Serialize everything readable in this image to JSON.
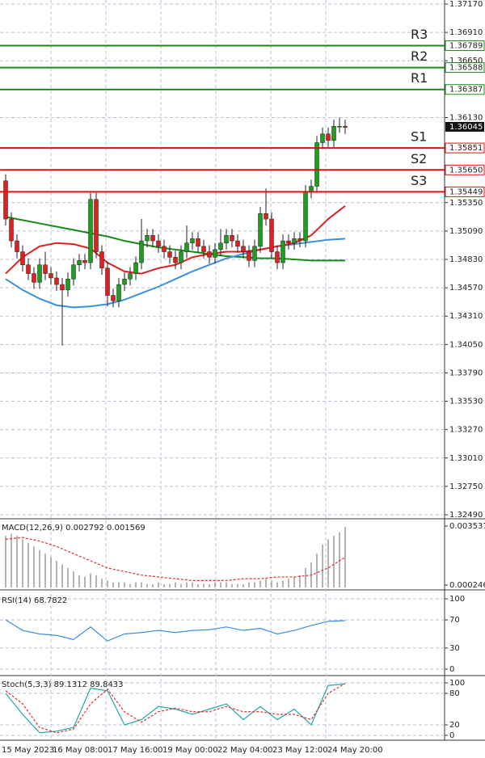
{
  "chart_data": [
    {
      "type": "candlestick",
      "up_color": "#1f9d1f",
      "down_color": "#e02020",
      "open": [
        1.3555,
        1.352,
        1.35,
        1.349,
        1.3478,
        1.347,
        1.3462,
        1.3478,
        1.347,
        1.3466,
        1.346,
        1.3455,
        1.3465,
        1.3478,
        1.3482,
        1.348,
        1.3538,
        1.349,
        1.3475,
        1.345,
        1.3445,
        1.346,
        1.3465,
        1.347,
        1.348,
        1.35,
        1.3505,
        1.35,
        1.3495,
        1.349,
        1.3485,
        1.348,
        1.349,
        1.3498,
        1.3502,
        1.3495,
        1.349,
        1.3485,
        1.3492,
        1.3498,
        1.3505,
        1.35,
        1.3495,
        1.349,
        1.3482,
        1.3495,
        1.3525,
        1.352,
        1.349,
        1.348,
        1.35,
        1.3498,
        1.3502,
        1.35,
        1.3545,
        1.355,
        1.359,
        1.3598,
        1.3592,
        1.3605,
        1.3605
      ],
      "high": [
        1.3561,
        1.3526,
        1.3506,
        1.3496,
        1.3484,
        1.3476,
        1.3484,
        1.349,
        1.3476,
        1.3472,
        1.3466,
        1.3471,
        1.3484,
        1.3488,
        1.3488,
        1.3544,
        1.3544,
        1.3496,
        1.3481,
        1.3456,
        1.3466,
        1.3471,
        1.3476,
        1.3486,
        1.352,
        1.3511,
        1.3511,
        1.3506,
        1.3501,
        1.3496,
        1.3491,
        1.3496,
        1.3514,
        1.3508,
        1.3508,
        1.3501,
        1.3496,
        1.3498,
        1.3511,
        1.3511,
        1.3511,
        1.3506,
        1.3501,
        1.3496,
        1.3501,
        1.3531,
        1.3548,
        1.3526,
        1.3496,
        1.3506,
        1.3506,
        1.3508,
        1.3508,
        1.3551,
        1.3556,
        1.3596,
        1.3604,
        1.3604,
        1.3611,
        1.3613,
        1.3611
      ],
      "low": [
        1.3514,
        1.3494,
        1.3484,
        1.3472,
        1.3464,
        1.3456,
        1.3456,
        1.3464,
        1.346,
        1.3454,
        1.3404,
        1.3449,
        1.3459,
        1.3472,
        1.3474,
        1.3474,
        1.3484,
        1.3469,
        1.344,
        1.3439,
        1.3439,
        1.3454,
        1.3459,
        1.3464,
        1.3474,
        1.3494,
        1.3494,
        1.3489,
        1.3484,
        1.3479,
        1.3474,
        1.3474,
        1.3484,
        1.3492,
        1.3489,
        1.3484,
        1.3479,
        1.3479,
        1.3486,
        1.3492,
        1.3494,
        1.3489,
        1.3484,
        1.3476,
        1.3476,
        1.3489,
        1.3514,
        1.3484,
        1.3474,
        1.3474,
        1.3492,
        1.3492,
        1.3494,
        1.3494,
        1.3539,
        1.3544,
        1.3584,
        1.3586,
        1.3586,
        1.3599,
        1.3598
      ],
      "close": [
        1.352,
        1.35,
        1.349,
        1.3478,
        1.347,
        1.3462,
        1.3478,
        1.347,
        1.3466,
        1.346,
        1.3455,
        1.3465,
        1.3478,
        1.3482,
        1.348,
        1.3538,
        1.349,
        1.3475,
        1.345,
        1.3445,
        1.346,
        1.3465,
        1.347,
        1.348,
        1.35,
        1.3505,
        1.35,
        1.3495,
        1.349,
        1.3485,
        1.348,
        1.349,
        1.3498,
        1.3502,
        1.3495,
        1.349,
        1.3485,
        1.3492,
        1.3498,
        1.3505,
        1.35,
        1.3495,
        1.349,
        1.3482,
        1.3495,
        1.3525,
        1.352,
        1.349,
        1.348,
        1.35,
        1.3498,
        1.3502,
        1.35,
        1.3545,
        1.355,
        1.359,
        1.3598,
        1.3592,
        1.3605,
        1.3605,
        1.3604
      ],
      "ylim": [
        1.3249,
        1.3717
      ],
      "yticks": [
        {
          "value": 1.3717,
          "label": "1.37170"
        },
        {
          "value": 1.3691,
          "label": "1.36910"
        },
        {
          "value": 1.3665,
          "label": "1.36650"
        },
        {
          "value": 1.3613,
          "label": "1.36130"
        },
        {
          "value": 1.3535,
          "label": "1.35350"
        },
        {
          "value": 1.3509,
          "label": "1.35090"
        },
        {
          "value": 1.3483,
          "label": "1.34830"
        },
        {
          "value": 1.3457,
          "label": "1.34570"
        },
        {
          "value": 1.3431,
          "label": "1.34310"
        },
        {
          "value": 1.3405,
          "label": "1.34050"
        },
        {
          "value": 1.3379,
          "label": "1.33790"
        },
        {
          "value": 1.3353,
          "label": "1.33530"
        },
        {
          "value": 1.3327,
          "label": "1.33270"
        },
        {
          "value": 1.3301,
          "label": "1.33010"
        },
        {
          "value": 1.3275,
          "label": "1.32750"
        },
        {
          "value": 1.3249,
          "label": "1.32490"
        }
      ],
      "xticks": [
        {
          "value": -1,
          "label": "15 May 2023"
        },
        {
          "value": 8,
          "label": "16 May 08:00"
        },
        {
          "value": 17.71,
          "label": "17 May 16:00"
        },
        {
          "value": 27.43,
          "label": "19 May 00:00"
        },
        {
          "value": 37.14,
          "label": "22 May 04:00"
        },
        {
          "value": 46.86,
          "label": "23 May 12:00"
        },
        {
          "value": 56.57,
          "label": "24 May 20:00"
        }
      ],
      "grid": true,
      "levels": [
        {
          "name": "R3",
          "value": 1.36789,
          "color": "#1a8a1a"
        },
        {
          "name": "R2",
          "value": 1.36588,
          "color": "#1a8a1a"
        },
        {
          "name": "R1",
          "value": 1.36387,
          "color": "#1a8a1a"
        },
        {
          "name": "S1",
          "value": 1.35851,
          "color": "#e01010"
        },
        {
          "name": "S2",
          "value": 1.3565,
          "value_label": "1.35650",
          "color": "#e01010"
        },
        {
          "name": "S3",
          "value": 1.35449,
          "color": "#e01010"
        }
      ],
      "last_price": 1.36045,
      "series": [
        {
          "color": "#1a8a1a",
          "x": [
            0,
            3,
            6,
            9,
            12,
            15,
            18,
            21,
            24,
            27,
            30,
            33,
            36,
            39,
            42,
            45,
            48,
            51,
            54,
            57,
            60
          ],
          "values": [
            1.3522,
            1.3519,
            1.3516,
            1.3513,
            1.351,
            1.3507,
            1.3504,
            1.35,
            1.3497,
            1.3494,
            1.3492,
            1.349,
            1.3488,
            1.3486,
            1.3485,
            1.3484,
            1.3484,
            1.3483,
            1.3482,
            1.3482,
            1.3482
          ]
        },
        {
          "color": "#3a8fe0",
          "x": [
            0,
            3,
            6,
            9,
            12,
            15,
            18,
            21,
            24,
            27,
            30,
            33,
            36,
            39,
            42,
            45,
            48,
            51,
            54,
            57,
            60
          ],
          "values": [
            1.3465,
            1.3455,
            1.3447,
            1.3441,
            1.3439,
            1.344,
            1.3442,
            1.3446,
            1.3452,
            1.3458,
            1.3465,
            1.3472,
            1.3478,
            1.3484,
            1.3488,
            1.3492,
            1.3495,
            1.3497,
            1.3499,
            1.3501,
            1.3502
          ]
        },
        {
          "color": "#e02020",
          "x": [
            0,
            3,
            6,
            9,
            12,
            15,
            18,
            21,
            24,
            27,
            30,
            33,
            36,
            39,
            42,
            45,
            48,
            51,
            54,
            57,
            60
          ],
          "values": [
            1.347,
            1.3485,
            1.3495,
            1.3498,
            1.3497,
            1.3493,
            1.348,
            1.3472,
            1.347,
            1.3475,
            1.3478,
            1.3485,
            1.3488,
            1.349,
            1.349,
            1.3492,
            1.3495,
            1.3498,
            1.3505,
            1.352,
            1.3532
          ]
        }
      ]
    },
    {
      "type": "bar",
      "label": "MACD(12,26,9) 0.002792 0.001569",
      "color": "#b4b4b4",
      "values": [
        0.003,
        0.0031,
        0.003,
        0.0028,
        0.0026,
        0.0024,
        0.0022,
        0.002,
        0.0018,
        0.0016,
        0.0014,
        0.0012,
        0.001,
        0.0008,
        0.0007,
        0.0009,
        0.0008,
        0.0006,
        0.0005,
        0.0004,
        0.0004,
        0.0004,
        0.0003,
        0.0004,
        0.0004,
        0.0003,
        0.0003,
        0.0004,
        0.0003,
        0.0003,
        0.0004,
        0.0003,
        0.0004,
        0.0004,
        0.0003,
        0.0003,
        0.0003,
        0.0004,
        0.0004,
        0.0004,
        0.0003,
        0.0003,
        0.0003,
        0.0004,
        0.0004,
        0.0005,
        0.0006,
        0.0005,
        0.0004,
        0.0005,
        0.0006,
        0.0007,
        0.0008,
        0.0012,
        0.0015,
        0.002,
        0.0025,
        0.0028,
        0.003,
        0.0032,
        0.0035
      ],
      "ylim": [
        0.000246,
        0.003537
      ],
      "yticks": [
        0.003537,
        0.000246
      ],
      "grid": false,
      "series": [
        {
          "color": "#e03030",
          "style": "dashed",
          "x": [
            0,
            3,
            6,
            9,
            12,
            15,
            18,
            21,
            24,
            27,
            30,
            33,
            36,
            39,
            42,
            45,
            48,
            51,
            54,
            57,
            60
          ],
          "values": [
            0.0028,
            0.0029,
            0.0027,
            0.0024,
            0.002,
            0.0016,
            0.0012,
            0.001,
            0.0008,
            0.0007,
            0.0006,
            0.0005,
            0.0005,
            0.0005,
            0.0006,
            0.0006,
            0.0007,
            0.0007,
            0.0008,
            0.0012,
            0.0018
          ]
        }
      ]
    },
    {
      "type": "line",
      "label": "RSI(14) 68.7822",
      "ylim": [
        0,
        100
      ],
      "yticks": [
        100,
        70,
        30,
        0
      ],
      "grid": true,
      "series": [
        {
          "color": "#3a8fe0",
          "x": [
            0,
            3,
            6,
            9,
            12,
            15,
            18,
            21,
            24,
            27,
            30,
            33,
            36,
            39,
            42,
            45,
            48,
            51,
            54,
            57,
            60
          ],
          "values": [
            70,
            55,
            50,
            48,
            42,
            60,
            40,
            50,
            52,
            55,
            52,
            55,
            56,
            60,
            55,
            58,
            50,
            55,
            62,
            68,
            69
          ]
        }
      ]
    },
    {
      "type": "line",
      "label": "Stoch(5,3,3) 89.1312 89.8433",
      "ylim": [
        0,
        100
      ],
      "yticks": [
        100,
        80,
        20,
        0
      ],
      "grid": true,
      "series": [
        {
          "color": "#20a8a8",
          "x": [
            0,
            3,
            6,
            9,
            12,
            15,
            18,
            21,
            24,
            27,
            30,
            33,
            36,
            39,
            42,
            45,
            48,
            51,
            54,
            57,
            60
          ],
          "values": [
            80,
            40,
            5,
            8,
            15,
            90,
            85,
            20,
            30,
            55,
            50,
            40,
            50,
            60,
            30,
            55,
            30,
            50,
            20,
            95,
            98
          ]
        },
        {
          "color": "#e03030",
          "style": "dashed",
          "x": [
            0,
            3,
            6,
            9,
            12,
            15,
            18,
            21,
            24,
            27,
            30,
            33,
            36,
            39,
            42,
            45,
            48,
            51,
            54,
            57,
            60
          ],
          "values": [
            85,
            60,
            15,
            5,
            12,
            60,
            88,
            45,
            25,
            45,
            52,
            45,
            45,
            55,
            45,
            45,
            40,
            40,
            30,
            80,
            99
          ]
        }
      ]
    }
  ]
}
